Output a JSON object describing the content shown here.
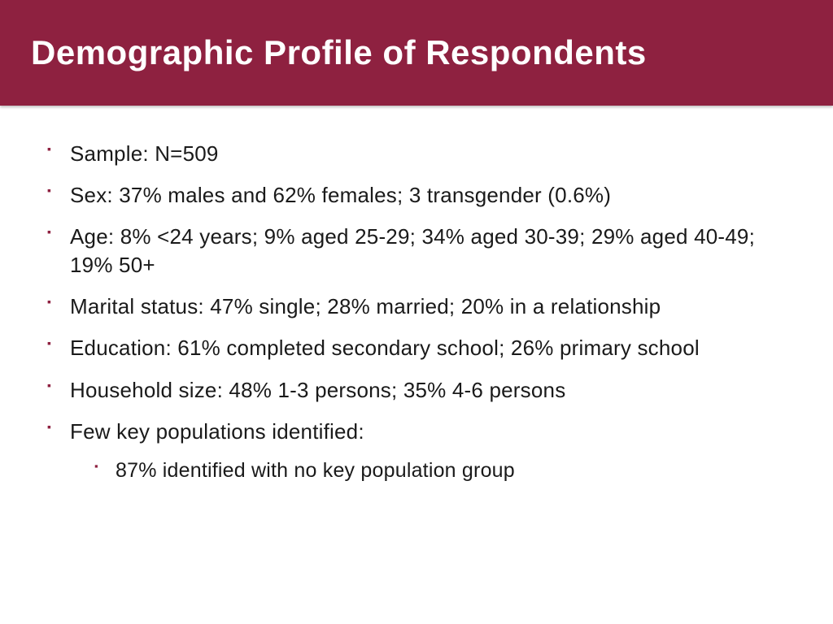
{
  "header": {
    "title": "Demographic Profile of Respondents",
    "background_color": "#8e2140",
    "text_color": "#ffffff",
    "font_size_pt": 32,
    "font_weight": "bold"
  },
  "body": {
    "background_color": "#ffffff",
    "text_color": "#1a1a1a",
    "bullet_color": "#8e2140",
    "font_size_pt": 20,
    "font_family": "Century Gothic"
  },
  "items": [
    {
      "text": "Sample: N=509"
    },
    {
      "text": "Sex: 37% males and 62% females; 3 transgender (0.6%)"
    },
    {
      "text": "Age: 8% <24 years; 9% aged 25-29; 34% aged 30-39; 29% aged 40-49; 19% 50+"
    },
    {
      "text": "Marital status: 47% single; 28% married; 20% in a relationship"
    },
    {
      "text": "Education: 61% completed secondary school; 26% primary school"
    },
    {
      "text": "Household size: 48% 1-3 persons; 35% 4-6 persons"
    },
    {
      "text": "Few key populations identified:",
      "sub": [
        {
          "text": "87% identified with no key population group"
        }
      ]
    }
  ]
}
